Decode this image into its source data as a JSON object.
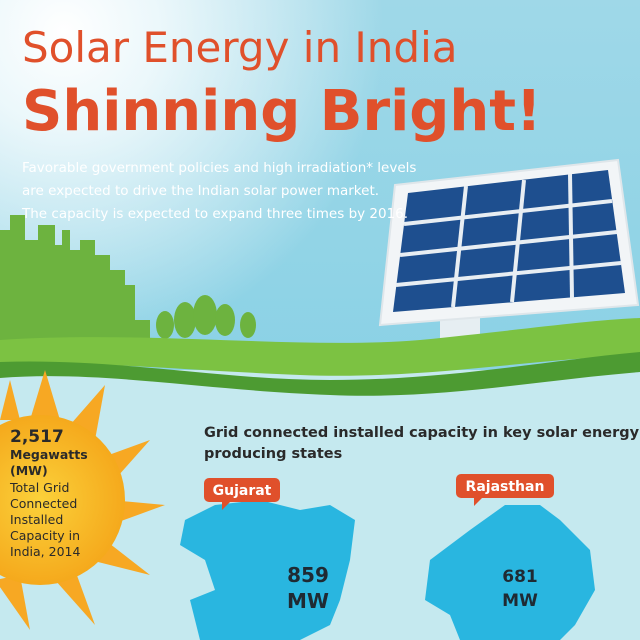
{
  "header": {
    "title_line1": "Solar Energy in India",
    "title_line2": "Shinning Bright!",
    "intro": [
      "Favorable government policies and high irradiation* levels",
      "are expected to drive the Indian solar power market.",
      "The capacity is expected to expand three times by 2016."
    ]
  },
  "sun_stat": {
    "value": "2,517",
    "unit": "Megawatts",
    "unit_abbr": "(MW)",
    "lines": [
      "Total Grid",
      "Connected",
      "Installed",
      "Capacity in",
      "India, 2014"
    ]
  },
  "section": {
    "title_lines": [
      "Grid connected installed capacity in key solar energy",
      "producing states"
    ]
  },
  "states": [
    {
      "name": "Gujarat",
      "value": "859",
      "unit": "MW"
    },
    {
      "name": "Rajasthan",
      "value": "681",
      "unit": "MW"
    }
  ]
}
